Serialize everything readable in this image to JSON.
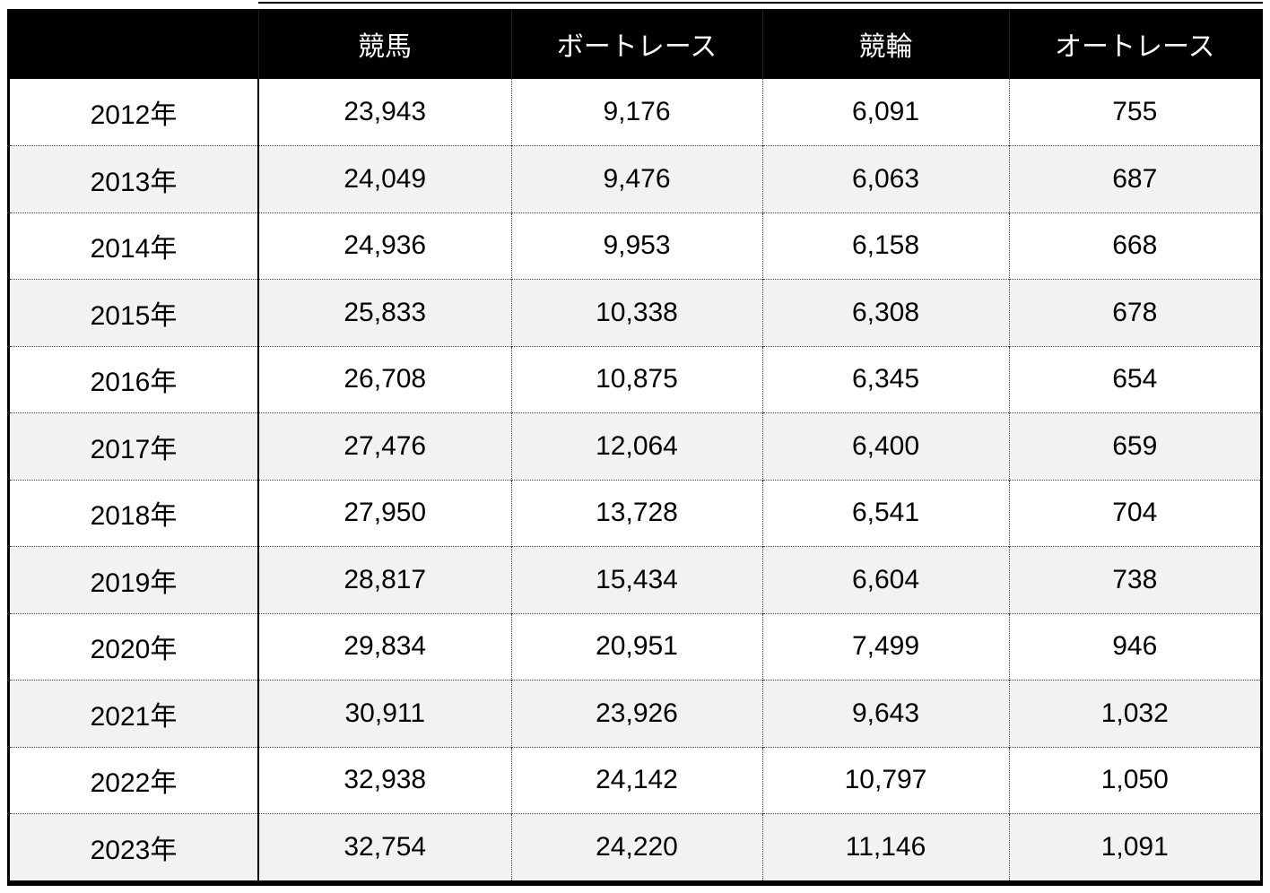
{
  "table": {
    "columns": [
      "",
      "競馬",
      "ボートレース",
      "競輪",
      "オートレース"
    ],
    "rows": [
      {
        "year": "2012年",
        "values": [
          "23,943",
          "9,176",
          "6,091",
          "755"
        ]
      },
      {
        "year": "2013年",
        "values": [
          "24,049",
          "9,476",
          "6,063",
          "687"
        ]
      },
      {
        "year": "2014年",
        "values": [
          "24,936",
          "9,953",
          "6,158",
          "668"
        ]
      },
      {
        "year": "2015年",
        "values": [
          "25,833",
          "10,338",
          "6,308",
          "678"
        ]
      },
      {
        "year": "2016年",
        "values": [
          "26,708",
          "10,875",
          "6,345",
          "654"
        ]
      },
      {
        "year": "2017年",
        "values": [
          "27,476",
          "12,064",
          "6,400",
          "659"
        ]
      },
      {
        "year": "2018年",
        "values": [
          "27,950",
          "13,728",
          "6,541",
          "704"
        ]
      },
      {
        "year": "2019年",
        "values": [
          "28,817",
          "15,434",
          "6,604",
          "738"
        ]
      },
      {
        "year": "2020年",
        "values": [
          "29,834",
          "20,951",
          "7,499",
          "946"
        ]
      },
      {
        "year": "2021年",
        "values": [
          "30,911",
          "23,926",
          "9,643",
          "1,032"
        ]
      },
      {
        "year": "2022年",
        "values": [
          "32,938",
          "24,142",
          "10,797",
          "1,050"
        ]
      },
      {
        "year": "2023年",
        "values": [
          "32,754",
          "24,220",
          "11,146",
          "1,091"
        ]
      }
    ]
  },
  "colors": {
    "header_bg": "#000000",
    "header_text": "#ffffff",
    "row_bg": "#ffffff",
    "row_alt_bg": "#f2f2f2",
    "grid_dotted": "#444444",
    "border": "#000000",
    "text": "#000000"
  },
  "chart_data": {
    "type": "table",
    "title": "",
    "categories": [
      "2012年",
      "2013年",
      "2014年",
      "2015年",
      "2016年",
      "2017年",
      "2018年",
      "2019年",
      "2020年",
      "2021年",
      "2022年",
      "2023年"
    ],
    "series": [
      {
        "name": "競馬",
        "values": [
          23943,
          24049,
          24936,
          25833,
          26708,
          27476,
          27950,
          28817,
          29834,
          30911,
          32938,
          32754
        ]
      },
      {
        "name": "ボートレース",
        "values": [
          9176,
          9476,
          9953,
          10338,
          10875,
          12064,
          13728,
          15434,
          20951,
          23926,
          24142,
          24220
        ]
      },
      {
        "name": "競輪",
        "values": [
          6091,
          6063,
          6158,
          6308,
          6345,
          6400,
          6541,
          6604,
          7499,
          9643,
          10797,
          11146
        ]
      },
      {
        "name": "オートレース",
        "values": [
          755,
          687,
          668,
          678,
          654,
          659,
          704,
          738,
          946,
          1032,
          1050,
          1091
        ]
      }
    ]
  }
}
